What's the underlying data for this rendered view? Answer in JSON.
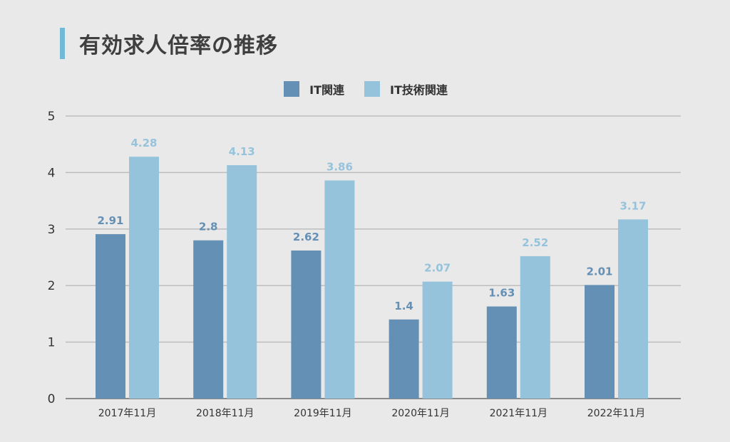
{
  "title": "有効求人倍率の推移",
  "colors": {
    "background": "#e9e9e9",
    "accent": "#72b9d6",
    "series_it": "#6490b5",
    "series_it_tech": "#96c3dc",
    "grid": "#bdbdbd",
    "axis": "#8a8a8a"
  },
  "legend": [
    {
      "label": "IT関連",
      "color": "#6490b5"
    },
    {
      "label": "IT技術関連",
      "color": "#96c3dc"
    }
  ],
  "chart_data": {
    "type": "bar",
    "title": "有効求人倍率の推移",
    "xlabel": "",
    "ylabel": "",
    "ylim": [
      0,
      5
    ],
    "yticks": [
      0,
      1,
      2,
      3,
      4,
      5
    ],
    "grid": true,
    "legend_position": "top-center",
    "categories": [
      "2017年11月",
      "2018年11月",
      "2019年11月",
      "2020年11月",
      "2021年11月",
      "2022年11月"
    ],
    "series": [
      {
        "name": "IT関連",
        "color": "#6490b5",
        "values": [
          2.91,
          2.8,
          2.62,
          1.4,
          1.63,
          2.01
        ],
        "labels": [
          "2.91",
          "2.8",
          "2.62",
          "1.4",
          "1.63",
          "2.01"
        ]
      },
      {
        "name": "IT技術関連",
        "color": "#96c3dc",
        "values": [
          4.28,
          4.13,
          3.86,
          2.07,
          2.52,
          3.17
        ],
        "labels": [
          "4.28",
          "4.13",
          "3.86",
          "2.07",
          "2.52",
          "3.17"
        ]
      }
    ]
  }
}
